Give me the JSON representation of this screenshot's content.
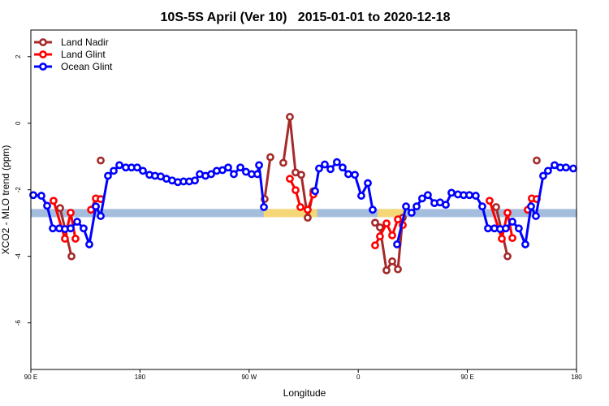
{
  "chart_data": {
    "type": "line",
    "title": "10S-5S April (Ver 10)   2015-01-01 to 2020-12-18",
    "x_label": "Longitude",
    "y_label": "XCO2 - MLO trend (ppm)",
    "xlim": [
      90,
      540
    ],
    "ylim": [
      -7.4,
      2.8
    ],
    "xticks": [
      {
        "value": 90,
        "label": "90 E"
      },
      180,
      {
        "value": 270,
        "label": "90 W"
      },
      {
        "value": 360,
        "label": "0"
      },
      {
        "value": 450,
        "label": "90 E"
      },
      180
    ],
    "yticks": [
      2,
      0,
      -2,
      -4,
      -6
    ],
    "legend": "top-left",
    "bands": [
      {
        "xlim": [
          90,
          540
        ],
        "y": -2.7,
        "color": "#a4bddd"
      },
      {
        "xlim": [
          282,
          326
        ],
        "y": -2.7,
        "color": "#f6d778"
      },
      {
        "xlim": [
          376,
          399
        ],
        "y": -2.7,
        "color": "#f6d778"
      }
    ],
    "series": [
      {
        "name": "Land Nadir",
        "color": "#a52a2a",
        "x": [
          114.1,
          123.5,
          135,
          147.6,
          215,
          282.8,
          287.5,
          293,
          298.2,
          303.6,
          308.3,
          313.0,
          318.3,
          323.0,
          350,
          373.9,
          377.9,
          383.3,
          388.0,
          392.7,
          396.7,
          430,
          473.7,
          483.1,
          495,
          507.2
        ],
        "values": [
          -2.55,
          -4.0,
          null,
          -1.12,
          null,
          -2.28,
          -1.02,
          null,
          -1.19,
          0.19,
          -1.48,
          -1.55,
          -2.84,
          -2.04,
          null,
          -2.99,
          -3.13,
          -4.42,
          -4.15,
          -4.39,
          -2.84,
          null,
          -2.52,
          -4.0,
          null,
          -1.12
        ]
      },
      {
        "name": "Land Glint",
        "color": "#ff0000",
        "x": [
          108.7,
          118.1,
          122.8,
          126.8,
          133,
          139.6,
          143.6,
          147.6,
          220,
          303.6,
          308.3,
          312.3,
          318.3,
          323.0,
          350,
          373.9,
          377.9,
          383.3,
          388.0,
          392.7,
          396.7,
          430,
          468.3,
          478.4,
          483.1,
          487.1,
          493,
          499.8,
          503.1,
          507.2
        ],
        "values": [
          -2.33,
          -3.47,
          -2.69,
          -3.47,
          null,
          -2.6,
          -2.26,
          -2.28,
          null,
          -1.67,
          -2.01,
          -2.52,
          -2.6,
          -2.14,
          null,
          -3.67,
          -3.4,
          -3.01,
          -3.37,
          -2.89,
          -3.06,
          null,
          -2.33,
          -3.47,
          -2.69,
          -3.45,
          null,
          -2.6,
          -2.26,
          -2.28
        ]
      },
      {
        "name": "Ocean Glint",
        "color": "#0000ff",
        "x": [
          92.0,
          98.7,
          103.4,
          108.1,
          113.4,
          118.1,
          122.8,
          128.2,
          133.5,
          138.2,
          143.6,
          147.6,
          153.6,
          158.3,
          163.0,
          168.3,
          173.0,
          177.7,
          182.4,
          187.8,
          192.4,
          197.1,
          201.8,
          206.5,
          211.2,
          215.9,
          220.6,
          225.3,
          229.3,
          234.0,
          238.7,
          243.3,
          248.0,
          252.7,
          257.4,
          262.8,
          267.4,
          272.1,
          276.8,
          278.2,
          282.2,
          303,
          324.4,
          327.7,
          332.4,
          337.1,
          342.4,
          347.1,
          351.8,
          357.2,
          362.5,
          367.9,
          371.9,
          382,
          392.0,
          399.4,
          404.0,
          408.1,
          412.7,
          417.4,
          422.8,
          427.5,
          432.2,
          436.9,
          442.2,
          446.9,
          451.6,
          456.9,
          462.3,
          467.0,
          472.3,
          477.0,
          481.7,
          487.1,
          492.4,
          497.8,
          502.5,
          506.5,
          512.5,
          516.5,
          521.9,
          526.6,
          531.3,
          537.3
        ],
        "values": [
          -2.16,
          -2.18,
          -2.48,
          -3.16,
          -3.16,
          -3.18,
          -3.16,
          -2.96,
          -3.16,
          -3.64,
          -2.5,
          -2.79,
          -1.58,
          -1.43,
          -1.26,
          -1.33,
          -1.33,
          -1.33,
          -1.43,
          -1.55,
          -1.58,
          -1.6,
          -1.67,
          -1.72,
          -1.77,
          -1.75,
          -1.75,
          -1.72,
          -1.53,
          -1.58,
          -1.53,
          -1.43,
          -1.41,
          -1.33,
          -1.53,
          -1.33,
          -1.46,
          -1.53,
          -1.53,
          -1.26,
          -2.52,
          null,
          -2.04,
          -1.36,
          -1.24,
          -1.38,
          -1.17,
          -1.33,
          -1.53,
          -1.55,
          -2.18,
          -1.8,
          -2.6,
          null,
          -3.64,
          -2.5,
          -2.69,
          -2.5,
          -2.26,
          -2.16,
          -2.4,
          -2.38,
          -2.45,
          -2.09,
          -2.14,
          -2.16,
          -2.16,
          -2.18,
          -2.5,
          -3.16,
          -3.16,
          -3.18,
          -3.16,
          -2.96,
          -3.16,
          -3.64,
          -2.5,
          -2.79,
          -1.58,
          -1.43,
          -1.26,
          -1.33,
          -1.33,
          -1.36
        ]
      }
    ]
  }
}
